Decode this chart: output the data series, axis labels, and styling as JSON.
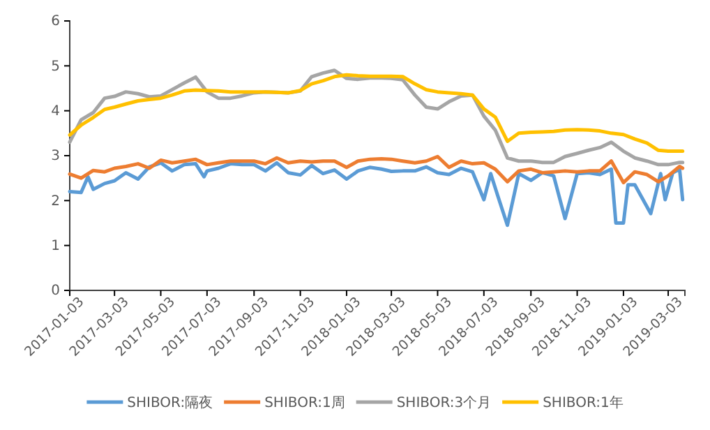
{
  "chart_data": {
    "type": "line",
    "x": [
      "2017-01-03",
      "2017-01-18",
      "2017-02-03",
      "2017-02-18",
      "2017-03-03",
      "2017-03-18",
      "2017-04-03",
      "2017-04-18",
      "2017-05-03",
      "2017-05-18",
      "2017-06-03",
      "2017-06-18",
      "2017-07-03",
      "2017-07-18",
      "2017-08-03",
      "2017-08-18",
      "2017-09-03",
      "2017-09-18",
      "2017-10-03",
      "2017-10-18",
      "2017-11-03",
      "2017-11-18",
      "2017-12-03",
      "2017-12-18",
      "2018-01-03",
      "2018-01-18",
      "2018-02-03",
      "2018-02-18",
      "2018-03-03",
      "2018-03-18",
      "2018-04-03",
      "2018-04-18",
      "2018-05-03",
      "2018-05-18",
      "2018-06-03",
      "2018-06-18",
      "2018-07-03",
      "2018-07-18",
      "2018-08-03",
      "2018-08-18",
      "2018-09-03",
      "2018-09-18",
      "2018-10-03",
      "2018-10-18",
      "2018-11-03",
      "2018-11-18",
      "2018-12-03",
      "2018-12-18",
      "2019-01-03",
      "2019-01-18",
      "2019-02-03",
      "2019-02-18",
      "2019-03-03",
      "2019-03-18",
      "2019-03-22"
    ],
    "series": [
      {
        "name": "SHIBOR:隔夜",
        "color": "#5b9bd5",
        "x": [
          "2017-01-03",
          "2017-01-18",
          "2017-01-27",
          "2017-02-03",
          "2017-02-18",
          "2017-03-03",
          "2017-03-18",
          "2017-04-03",
          "2017-04-18",
          "2017-05-03",
          "2017-05-18",
          "2017-06-03",
          "2017-06-18",
          "2017-06-29",
          "2017-07-03",
          "2017-07-18",
          "2017-08-03",
          "2017-08-18",
          "2017-09-03",
          "2017-09-18",
          "2017-10-03",
          "2017-10-18",
          "2017-11-03",
          "2017-11-18",
          "2017-12-03",
          "2017-12-18",
          "2018-01-03",
          "2018-01-18",
          "2018-02-03",
          "2018-02-18",
          "2018-03-03",
          "2018-03-18",
          "2018-04-03",
          "2018-04-18",
          "2018-05-03",
          "2018-05-18",
          "2018-06-03",
          "2018-06-18",
          "2018-07-03",
          "2018-07-12",
          "2018-07-21",
          "2018-08-03",
          "2018-08-18",
          "2018-09-03",
          "2018-09-18",
          "2018-10-03",
          "2018-10-18",
          "2018-11-03",
          "2018-11-18",
          "2018-12-03",
          "2018-12-18",
          "2018-12-24",
          "2019-01-03",
          "2019-01-09",
          "2019-01-18",
          "2019-02-08",
          "2019-02-21",
          "2019-02-27",
          "2019-03-09",
          "2019-03-18",
          "2019-03-22"
        ],
        "values": [
          2.2,
          2.18,
          2.53,
          2.25,
          2.38,
          2.44,
          2.62,
          2.48,
          2.75,
          2.84,
          2.66,
          2.8,
          2.82,
          2.53,
          2.66,
          2.72,
          2.82,
          2.8,
          2.8,
          2.66,
          2.84,
          2.62,
          2.57,
          2.78,
          2.6,
          2.68,
          2.48,
          2.66,
          2.74,
          2.7,
          2.65,
          2.66,
          2.66,
          2.75,
          2.62,
          2.58,
          2.72,
          2.64,
          2.02,
          2.6,
          2.12,
          1.45,
          2.6,
          2.45,
          2.62,
          2.55,
          1.6,
          2.6,
          2.62,
          2.58,
          2.7,
          1.5,
          1.5,
          2.35,
          2.35,
          1.71,
          2.6,
          2.02,
          2.62,
          2.7,
          2.02
        ]
      },
      {
        "name": "SHIBOR:1周",
        "color": "#ed7d31",
        "values": [
          2.59,
          2.5,
          2.67,
          2.64,
          2.72,
          2.76,
          2.82,
          2.72,
          2.9,
          2.84,
          2.88,
          2.92,
          2.8,
          2.84,
          2.88,
          2.88,
          2.88,
          2.82,
          2.95,
          2.84,
          2.88,
          2.86,
          2.88,
          2.88,
          2.74,
          2.88,
          2.92,
          2.93,
          2.92,
          2.88,
          2.84,
          2.88,
          2.98,
          2.74,
          2.88,
          2.82,
          2.84,
          2.7,
          2.42,
          2.66,
          2.7,
          2.62,
          2.64,
          2.66,
          2.64,
          2.66,
          2.66,
          2.88,
          2.4,
          2.64,
          2.58,
          2.42,
          2.55,
          2.76,
          2.72
        ]
      },
      {
        "name": "SHIBOR:3个月",
        "color": "#a5a5a5",
        "values": [
          3.3,
          3.8,
          3.96,
          4.28,
          4.32,
          4.42,
          4.38,
          4.31,
          4.33,
          4.47,
          4.62,
          4.75,
          4.42,
          4.28,
          4.28,
          4.33,
          4.4,
          4.42,
          4.41,
          4.4,
          4.44,
          4.76,
          4.84,
          4.9,
          4.72,
          4.7,
          4.73,
          4.73,
          4.72,
          4.69,
          4.35,
          4.08,
          4.04,
          4.2,
          4.33,
          4.35,
          3.88,
          3.57,
          2.95,
          2.88,
          2.88,
          2.85,
          2.85,
          2.98,
          3.05,
          3.12,
          3.18,
          3.3,
          3.1,
          2.95,
          2.88,
          2.8,
          2.8,
          2.85,
          2.85
        ]
      },
      {
        "name": "SHIBOR:1年",
        "color": "#ffc000",
        "values": [
          3.46,
          3.68,
          3.85,
          4.03,
          4.08,
          4.15,
          4.22,
          4.25,
          4.28,
          4.35,
          4.44,
          4.46,
          4.45,
          4.44,
          4.42,
          4.42,
          4.42,
          4.42,
          4.41,
          4.4,
          4.45,
          4.6,
          4.67,
          4.76,
          4.8,
          4.78,
          4.77,
          4.77,
          4.77,
          4.76,
          4.6,
          4.47,
          4.42,
          4.4,
          4.38,
          4.35,
          4.04,
          3.86,
          3.32,
          3.5,
          3.52,
          3.53,
          3.54,
          3.57,
          3.58,
          3.57,
          3.55,
          3.5,
          3.47,
          3.37,
          3.28,
          3.12,
          3.1,
          3.1,
          3.1
        ]
      }
    ],
    "xlim": [
      "2017-01-03",
      "2019-03-25"
    ],
    "xticks": [
      "2017-01-03",
      "2017-03-03",
      "2017-05-03",
      "2017-07-03",
      "2017-09-03",
      "2017-11-03",
      "2018-01-03",
      "2018-03-03",
      "2018-05-03",
      "2018-07-03",
      "2018-09-03",
      "2018-11-03",
      "2019-01-03",
      "2019-03-03"
    ],
    "ylim": [
      0,
      6
    ],
    "yticks": [
      0,
      1,
      2,
      3,
      4,
      5,
      6
    ],
    "grid": false,
    "legend": "bottom",
    "marker": "none",
    "line_style": "solid"
  }
}
